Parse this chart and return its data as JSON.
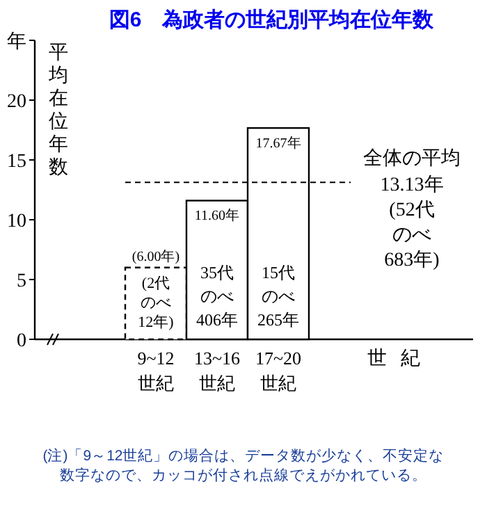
{
  "chart_data": {
    "type": "bar",
    "title": "図6　為政者の世紀別平均在位年数",
    "ylabel": "平均在位年数",
    "xlabel": "世紀",
    "categories": [
      "9~12\n世紀",
      "13~16\n世紀",
      "17~20\n世紀"
    ],
    "stacked": true,
    "series": [
      {
        "color": "#ffffff",
        "line_style": "dashed",
        "values": [
          6.0,
          null,
          null
        ],
        "value_labels": [
          "(6.00年)",
          null,
          null
        ]
      },
      {
        "color": "#ffffff",
        "line_style": "solid",
        "values": [
          null,
          11.6,
          17.67
        ],
        "value_labels": [
          null,
          "11.60年",
          "17.67年"
        ]
      }
    ],
    "ylim": [
      0,
      25
    ],
    "yticks": [
      0,
      5,
      10,
      15,
      20,
      {
        "value": 25,
        "label": "年"
      }
    ],
    "grid": false,
    "ref_lines": [
      {
        "axis": "y",
        "value": 13.13,
        "label": "13.13年(52代のべ683年)",
        "line_style": "dashed"
      }
    ],
    "annotations": [
      "(2代のべ12年)",
      "35代のべ406年",
      "15代のべ265年",
      "全体の平均",
      "(注)「9～12世紀」の場合は、データ数が少なく、不安定な数字なので、カッコが付され点線でえがかれている。"
    ]
  }
}
